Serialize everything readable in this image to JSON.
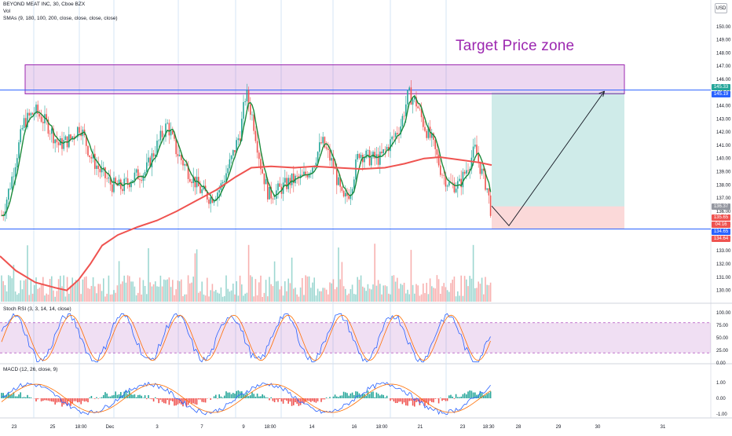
{
  "legend": {
    "symbol": "BEYOND MEAT INC, 30, Cboe BZX",
    "vol": "Vol",
    "sma": "SMAs (9, 180, 100, 200, close, close, close, close)"
  },
  "currency": "USD",
  "annotation": {
    "target_text": "Target Price zone"
  },
  "price_badges": [
    {
      "text": "145.33",
      "color": "#26a69a"
    },
    {
      "text": "145.19",
      "color": "#2962ff"
    },
    {
      "text": "136.37",
      "color": "#9598a1"
    },
    {
      "text": "135.65",
      "color": "#ef5350"
    },
    {
      "text": "04:16",
      "color": "#ef5350"
    },
    {
      "text": "134.65",
      "color": "#2962ff"
    },
    {
      "text": "134.64",
      "color": "#ef5350"
    }
  ],
  "stoch": {
    "label": "Stoch RSI (3, 3, 14, 14, close)"
  },
  "macd": {
    "label": "MACD (12, 26, close, 9)"
  },
  "chart_data": {
    "type": "candlestick",
    "symbol": "BEYOND MEAT INC",
    "interval": "30",
    "price_axis": {
      "ticks": [
        "150.00",
        "149.00",
        "148.00",
        "147.00",
        "146.00",
        "145.00",
        "144.00",
        "143.00",
        "142.00",
        "141.00",
        "140.00",
        "139.00",
        "138.00",
        "137.00",
        "136.00",
        "135.00",
        "134.00",
        "133.00",
        "132.00",
        "131.00",
        "130.00"
      ],
      "range": [
        129.5,
        151.3
      ]
    },
    "x_axis": {
      "ticks": [
        "23",
        "25",
        "18:00",
        "Dec",
        "3",
        "7",
        "9",
        "18:00",
        "14",
        "16",
        "18:00",
        "21",
        "23",
        "18:30",
        "28",
        "29",
        "30",
        "31"
      ]
    },
    "horizontal_lines": [
      {
        "price": 145.19,
        "color": "#2962ff"
      },
      {
        "price": 134.65,
        "color": "#2962ff"
      }
    ],
    "resistance_zone": {
      "price_top": 147.1,
      "price_bottom": 144.9,
      "color": "#9c27b0"
    },
    "long_position": {
      "entry": 136.37,
      "target": 145.0,
      "stop": 134.65
    },
    "projection_path": [
      {
        "bar": 0.0,
        "price": 136.4
      },
      {
        "bar": 0.13,
        "price": 134.9
      },
      {
        "bar": 0.85,
        "price": 145.1
      }
    ],
    "stoch_axis": {
      "ticks": [
        "100.00",
        "75.00",
        "50.00",
        "25.00",
        "0.00"
      ],
      "band": [
        20,
        80
      ]
    },
    "macd_axis": {
      "ticks": [
        "1.00",
        "0.00",
        "-1.00"
      ]
    }
  }
}
